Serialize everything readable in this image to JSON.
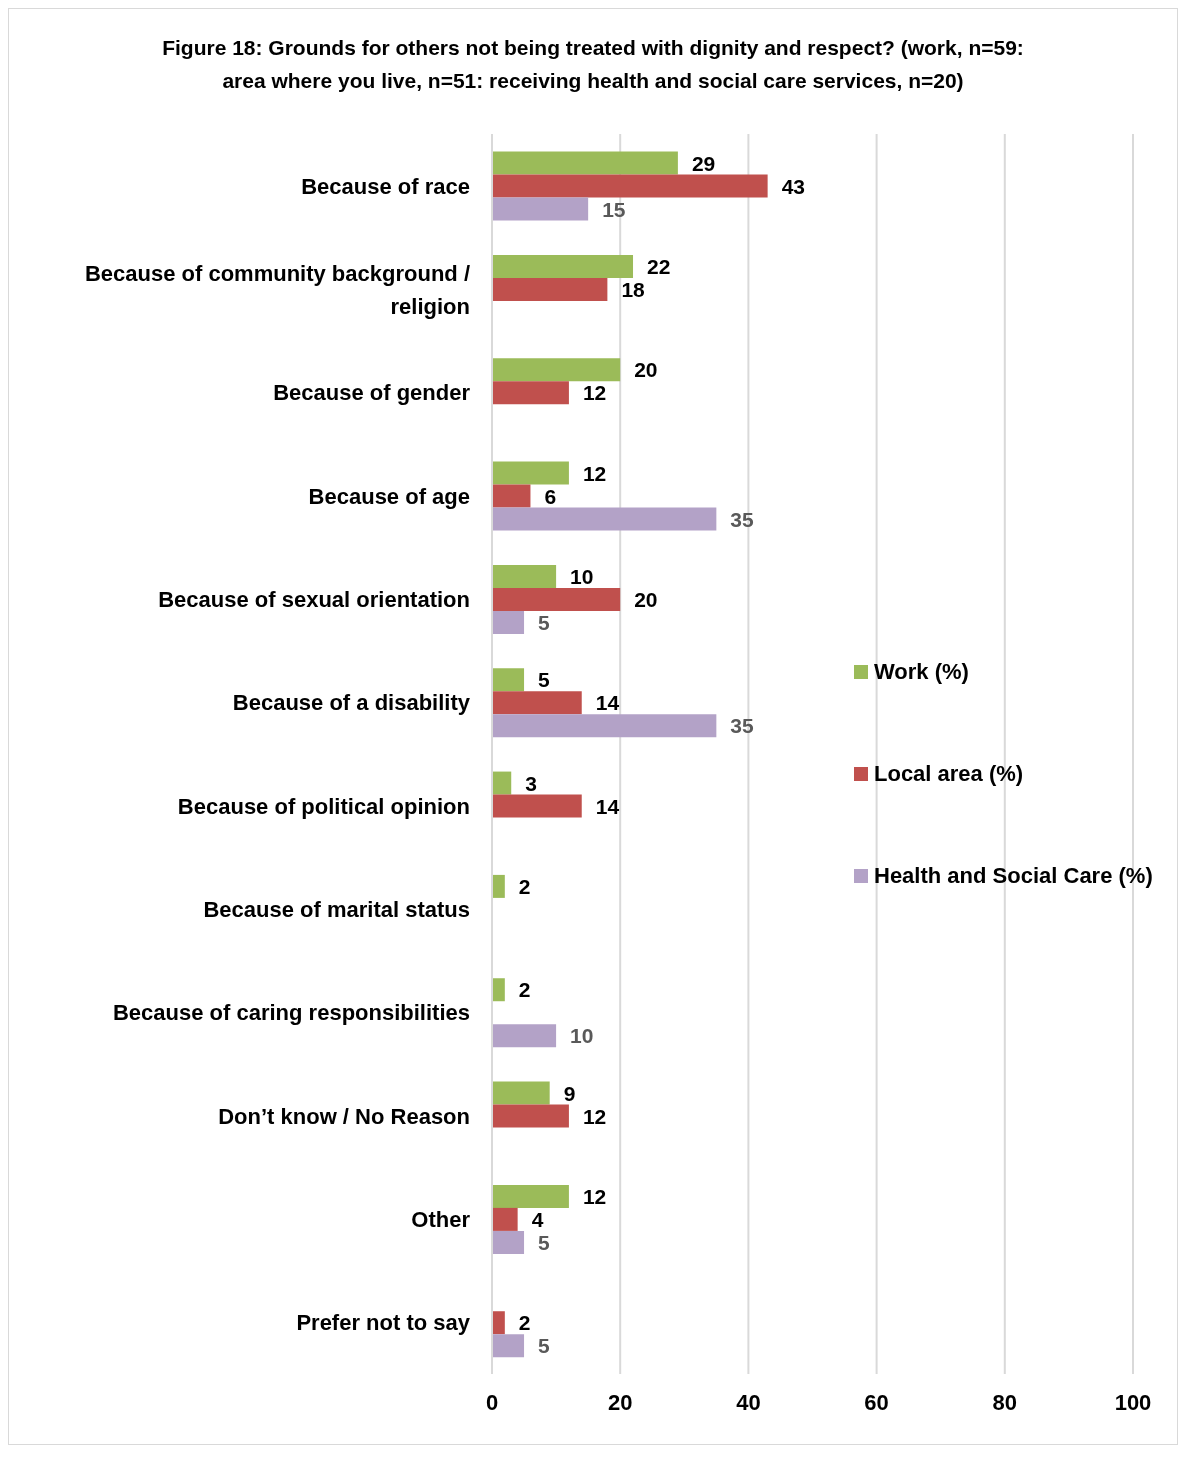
{
  "chart_data": {
    "type": "bar",
    "orientation": "horizontal",
    "title": "Figure 18: Grounds for others not being treated with dignity and respect? (work, n=59: area where you live, n=51: receiving health and social care services, n=20)",
    "categories": [
      "Because of race",
      "Because of community background / religion",
      "Because of gender",
      "Because of age",
      "Because of sexual orientation",
      "Because of a disability",
      "Because of political opinion",
      "Because of marital status",
      "Because of caring responsibilities",
      "Don’t know /  No Reason",
      "Other",
      "Prefer not to say"
    ],
    "series": [
      {
        "name": "Work (%)",
        "color": "#9bbb59",
        "values": [
          29,
          22,
          20,
          12,
          10,
          5,
          3,
          2,
          2,
          9,
          12,
          null
        ]
      },
      {
        "name": "Local area (%)",
        "color": "#c0504d",
        "values": [
          43,
          18,
          12,
          6,
          20,
          14,
          14,
          null,
          null,
          12,
          4,
          2
        ]
      },
      {
        "name": "Health and Social Care (%)",
        "color": "#b3a2c7",
        "values": [
          15,
          null,
          null,
          35,
          5,
          35,
          null,
          null,
          10,
          null,
          5,
          5
        ]
      }
    ],
    "xlim": [
      0,
      100
    ],
    "xticks": [
      0,
      20,
      40,
      60,
      80,
      100
    ],
    "grid": "x",
    "legend": "right",
    "data_labels": true
  }
}
